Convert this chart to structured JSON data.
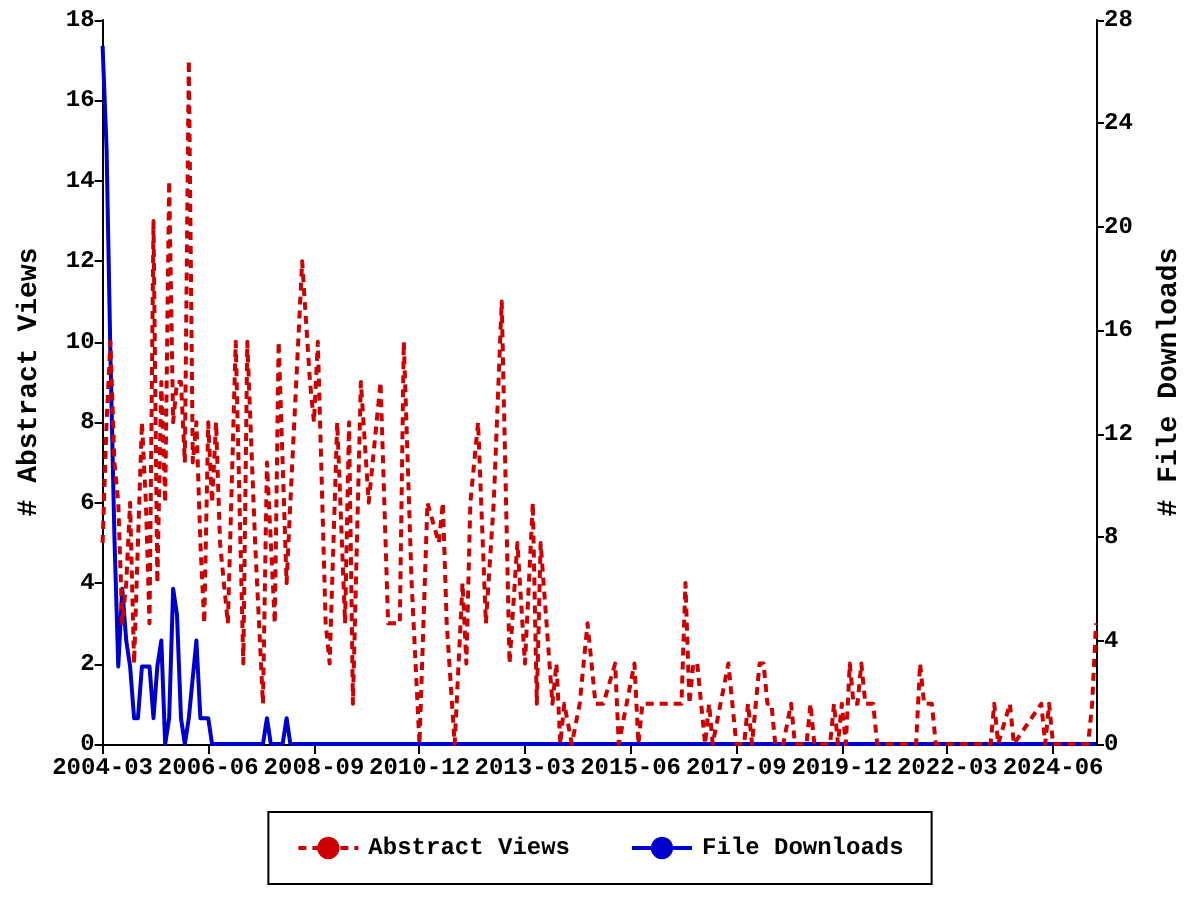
{
  "chart_data": {
    "type": "line",
    "ylabel": "# Abstract Views",
    "y2label": "# File Downloads",
    "xlim": [
      "2004-03",
      "2025-05"
    ],
    "xticks": [
      "2004-03",
      "2006-06",
      "2008-09",
      "2010-12",
      "2013-03",
      "2015-06",
      "2017-09",
      "2019-12",
      "2022-03",
      "2024-06"
    ],
    "ylim": [
      0,
      18
    ],
    "yticks": [
      0,
      2,
      4,
      6,
      8,
      10,
      12,
      14,
      16,
      18
    ],
    "y2lim": [
      0,
      28
    ],
    "y2ticks": [
      0,
      4,
      8,
      12,
      16,
      20,
      24,
      28
    ],
    "legend": "bottom",
    "grid": false,
    "marker": "none",
    "series": [
      {
        "name": "Abstract Views",
        "color": "#cc0000",
        "line_style": "dashed",
        "x": [
          "2004-03",
          "2004-04",
          "2004-05",
          "2004-06",
          "2004-07",
          "2004-08",
          "2004-09",
          "2004-10",
          "2004-11",
          "2004-12",
          "2005-01",
          "2005-02",
          "2005-03",
          "2005-04",
          "2005-05",
          "2005-06",
          "2005-07",
          "2005-08",
          "2005-09",
          "2005-10",
          "2005-11",
          "2005-12",
          "2006-01",
          "2006-02",
          "2006-03",
          "2006-04",
          "2006-05",
          "2006-06",
          "2006-07",
          "2006-08",
          "2006-09",
          "2006-10",
          "2006-11",
          "2007-01",
          "2007-03",
          "2007-04",
          "2007-06",
          "2007-08",
          "2007-09",
          "2007-11",
          "2007-12",
          "2008-02",
          "2008-03",
          "2008-06",
          "2008-08",
          "2008-09",
          "2008-10",
          "2008-12",
          "2009-01",
          "2009-03",
          "2009-05",
          "2009-06",
          "2009-07",
          "2009-09",
          "2009-11",
          "2010-02",
          "2010-04",
          "2010-07",
          "2010-08",
          "2010-10",
          "2010-12",
          "2011-02",
          "2011-05",
          "2011-06",
          "2011-07",
          "2011-09",
          "2011-11",
          "2011-12",
          "2012-01",
          "2012-03",
          "2012-05",
          "2012-07",
          "2012-09",
          "2012-11",
          "2013-01",
          "2013-03",
          "2013-05",
          "2013-06",
          "2013-07",
          "2013-10",
          "2013-11",
          "2013-12",
          "2014-01",
          "2014-03",
          "2014-05",
          "2014-07",
          "2014-09",
          "2014-11",
          "2015-02",
          "2015-03",
          "2015-05",
          "2015-07",
          "2015-08",
          "2015-09",
          "2015-11",
          "2016-01",
          "2016-03",
          "2016-05",
          "2016-07",
          "2016-08",
          "2016-09",
          "2016-10",
          "2016-11",
          "2016-12",
          "2017-01",
          "2017-02",
          "2017-03",
          "2017-05",
          "2017-07",
          "2017-08",
          "2017-09",
          "2017-11",
          "2017-12",
          "2018-01",
          "2018-03",
          "2018-04",
          "2018-05",
          "2018-06",
          "2018-07",
          "2018-09",
          "2018-11",
          "2018-12",
          "2019-03",
          "2019-04",
          "2019-05",
          "2019-09",
          "2019-10",
          "2019-11",
          "2019-12",
          "2020-01",
          "2020-02",
          "2020-03",
          "2020-04",
          "2020-05",
          "2020-06",
          "2020-07",
          "2020-08",
          "2020-09",
          "2021-07",
          "2021-08",
          "2021-09",
          "2021-10",
          "2021-11",
          "2021-12",
          "2023-02",
          "2023-03",
          "2023-04",
          "2023-07",
          "2023-08",
          "2024-03",
          "2024-04",
          "2024-05",
          "2024-06",
          "2025-03",
          "2025-04",
          "2025-05"
        ],
        "values": [
          5,
          8,
          10,
          7,
          6,
          3,
          4,
          6,
          2,
          5,
          8,
          6,
          3,
          13,
          4,
          9,
          6,
          14,
          8,
          9,
          9,
          7,
          17,
          7,
          8,
          5,
          3,
          8,
          6,
          8,
          5,
          4,
          3,
          10,
          2,
          10,
          5,
          1,
          7,
          3,
          10,
          4,
          6,
          12,
          9,
          8,
          10,
          3,
          2,
          8,
          3,
          8,
          1,
          9,
          6,
          9,
          3,
          3,
          10,
          4,
          0,
          6,
          5,
          6,
          3,
          0,
          4,
          2,
          6,
          8,
          3,
          6,
          11,
          2,
          5,
          2,
          6,
          1,
          5,
          1,
          2,
          0,
          1,
          0,
          1,
          3,
          1,
          1,
          2,
          0,
          1,
          2,
          0,
          1,
          1,
          1,
          1,
          1,
          1,
          4,
          1,
          2,
          2,
          1,
          0,
          1,
          0,
          1,
          2,
          1,
          0,
          0,
          1,
          0,
          2,
          2,
          1,
          1,
          0,
          0,
          1,
          0,
          0,
          1,
          0,
          0,
          1,
          0,
          1,
          0,
          2,
          1,
          1,
          2,
          1,
          1,
          1,
          0,
          0,
          2,
          1,
          1,
          1,
          0,
          0,
          1,
          0,
          1,
          0,
          1,
          0,
          1,
          0,
          0,
          1,
          3
        ]
      },
      {
        "name": "File Downloads",
        "color": "#0000cc",
        "line_style": "solid",
        "axis": "y2",
        "x": [
          "2004-03",
          "2004-04",
          "2004-05",
          "2004-06",
          "2004-07",
          "2004-08",
          "2004-09",
          "2004-10",
          "2004-11",
          "2004-12",
          "2005-01",
          "2005-03",
          "2005-04",
          "2005-05",
          "2005-06",
          "2005-07",
          "2005-08",
          "2005-09",
          "2005-10",
          "2005-11",
          "2005-12",
          "2006-01",
          "2006-03",
          "2006-04",
          "2006-05",
          "2006-06",
          "2006-07",
          "2007-08",
          "2007-09",
          "2007-10",
          "2008-01",
          "2008-02",
          "2008-03",
          "2025-05"
        ],
        "values": [
          27,
          23,
          15,
          8,
          3,
          6,
          4,
          3,
          1,
          1,
          3,
          3,
          1,
          3,
          4,
          0,
          1,
          6,
          5,
          1,
          0,
          1,
          4,
          1,
          1,
          1,
          0,
          0,
          1,
          0,
          0,
          1,
          0,
          0
        ]
      }
    ]
  }
}
